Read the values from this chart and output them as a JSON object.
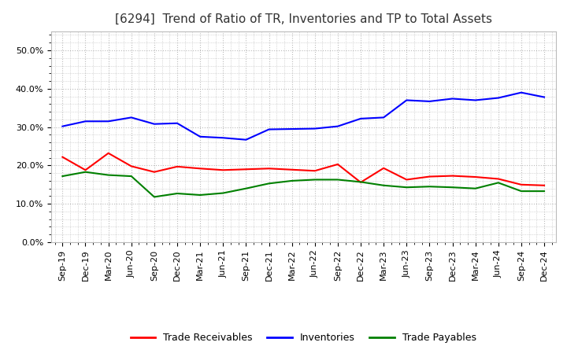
{
  "title": "[6294]  Trend of Ratio of TR, Inventories and TP to Total Assets",
  "x_labels": [
    "Sep-19",
    "Dec-19",
    "Mar-20",
    "Jun-20",
    "Sep-20",
    "Dec-20",
    "Mar-21",
    "Jun-21",
    "Sep-21",
    "Dec-21",
    "Mar-22",
    "Jun-22",
    "Sep-22",
    "Dec-22",
    "Mar-23",
    "Jun-23",
    "Sep-23",
    "Dec-23",
    "Mar-24",
    "Jun-24",
    "Sep-24",
    "Dec-24"
  ],
  "trade_receivables": [
    0.222,
    0.188,
    0.232,
    0.198,
    0.183,
    0.197,
    0.192,
    0.188,
    0.19,
    0.192,
    0.189,
    0.186,
    0.203,
    0.156,
    0.193,
    0.163,
    0.171,
    0.173,
    0.17,
    0.165,
    0.15,
    0.148
  ],
  "inventories": [
    0.302,
    0.315,
    0.315,
    0.325,
    0.308,
    0.31,
    0.275,
    0.272,
    0.267,
    0.294,
    0.295,
    0.296,
    0.302,
    0.322,
    0.325,
    0.37,
    0.367,
    0.374,
    0.37,
    0.376,
    0.39,
    0.378
  ],
  "trade_payables": [
    0.172,
    0.183,
    0.175,
    0.172,
    0.118,
    0.127,
    0.123,
    0.128,
    0.14,
    0.153,
    0.16,
    0.163,
    0.163,
    0.157,
    0.148,
    0.143,
    0.145,
    0.143,
    0.14,
    0.155,
    0.133,
    0.133
  ],
  "line_color_tr": "#FF0000",
  "line_color_inv": "#0000FF",
  "line_color_tp": "#008000",
  "ylim": [
    0.0,
    0.55
  ],
  "yticks": [
    0.0,
    0.1,
    0.2,
    0.3,
    0.4,
    0.5
  ],
  "background_color": "#FFFFFF",
  "plot_bg_color": "#FFFFFF",
  "grid_color": "#BBBBBB",
  "legend_labels": [
    "Trade Receivables",
    "Inventories",
    "Trade Payables"
  ],
  "title_fontsize": 11,
  "tick_fontsize": 8,
  "legend_fontsize": 9
}
